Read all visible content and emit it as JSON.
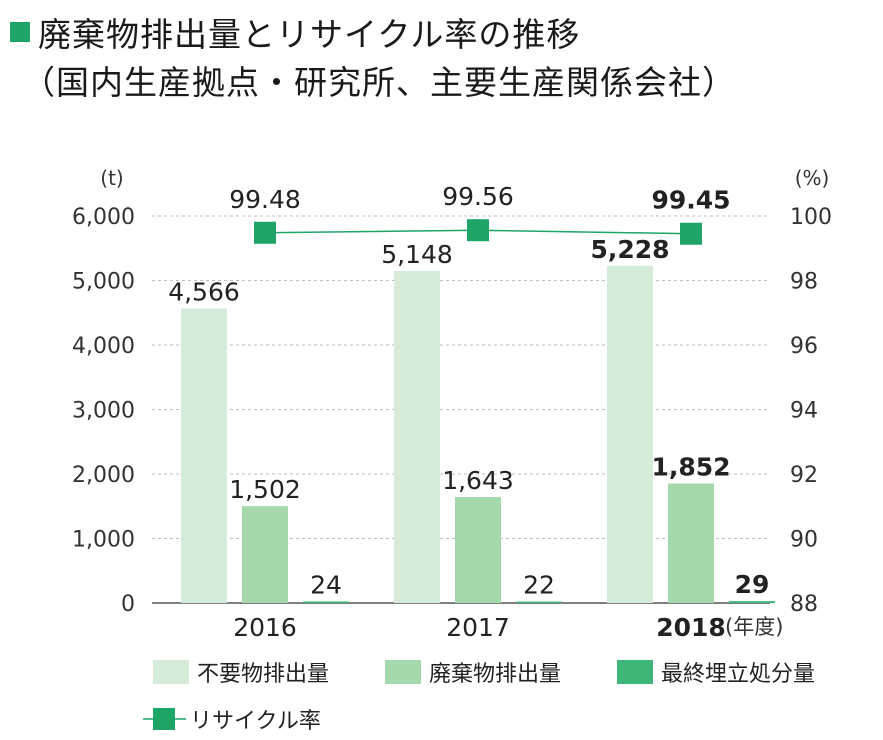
{
  "title": {
    "line1": "廃棄物排出量とリサイクル率の推移",
    "line2": "（国内生産拠点・研究所、主要生産関係会社）"
  },
  "colors": {
    "title_square": "#1fa468",
    "non_essential": "#d6ecd9",
    "waste": "#a6d8ae",
    "landfill": "#3fb578",
    "recycling": "#1fa468"
  },
  "chart_data": {
    "type": "bar",
    "categories": [
      "2016",
      "2017",
      "2018"
    ],
    "category_unit": "(年度)",
    "highlight_category": "2018",
    "left_axis": {
      "unit": "(t)",
      "min": 0,
      "max": 6000,
      "ticks": [
        "0",
        "1,000",
        "2,000",
        "3,000",
        "4,000",
        "5,000",
        "6,000"
      ]
    },
    "right_axis": {
      "unit": "(%)",
      "min": 88,
      "max": 100,
      "ticks": [
        "88",
        "90",
        "92",
        "94",
        "96",
        "98",
        "100"
      ]
    },
    "series": [
      {
        "name": "不要物排出量",
        "axis": "left",
        "values": [
          4566,
          5148,
          5228
        ],
        "labels": [
          "4,566",
          "5,148",
          "5,228"
        ]
      },
      {
        "name": "廃棄物排出量",
        "axis": "left",
        "values": [
          1502,
          1643,
          1852
        ],
        "labels": [
          "1,502",
          "1,643",
          "1,852"
        ]
      },
      {
        "name": "最終埋立処分量",
        "axis": "left",
        "values": [
          24,
          22,
          29
        ],
        "labels": [
          "24",
          "22",
          "29"
        ]
      },
      {
        "name": "リサイクル率",
        "type": "line",
        "axis": "right",
        "values": [
          99.48,
          99.56,
          99.45
        ],
        "labels": [
          "99.48",
          "99.56",
          "99.45"
        ]
      }
    ],
    "grid": "horizontal dashed",
    "legend_position": "bottom"
  }
}
